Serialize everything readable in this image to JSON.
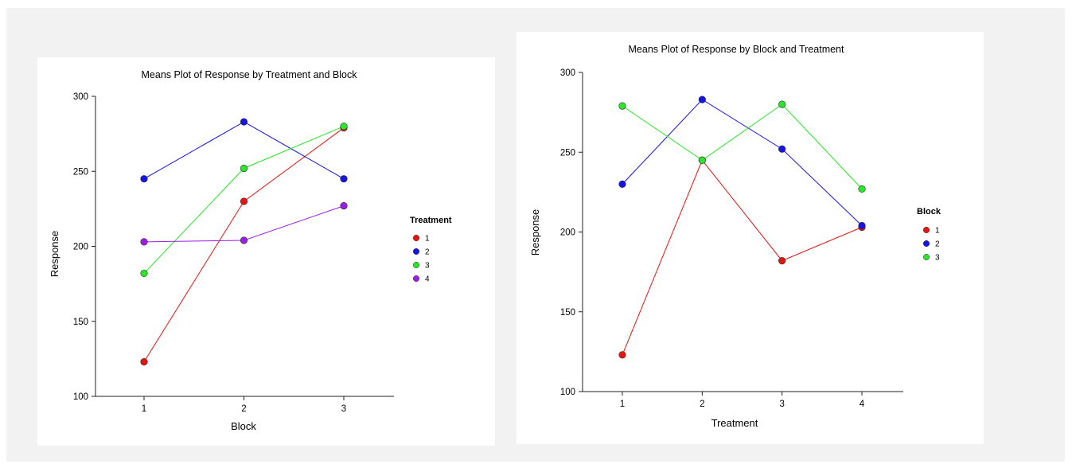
{
  "colors": {
    "red": "#e8130f",
    "blue": "#1414e6",
    "green": "#28e628",
    "purple": "#9a1ee6"
  },
  "chart_data": [
    {
      "type": "line",
      "title": "Means Plot of Response by Treatment and Block",
      "xlabel": "Block",
      "ylabel": "Response",
      "categories": [
        "1",
        "2",
        "3"
      ],
      "ylim": [
        100,
        300
      ],
      "yticks": [
        "100",
        "150",
        "200",
        "250",
        "300"
      ],
      "legend_title": "Treatment",
      "legend_placement": "right",
      "grid": false,
      "series": [
        {
          "name": "1",
          "color": "#e8130f",
          "values": [
            123,
            230,
            279
          ]
        },
        {
          "name": "2",
          "color": "#1414e6",
          "values": [
            245,
            283,
            245
          ]
        },
        {
          "name": "3",
          "color": "#28e628",
          "values": [
            182,
            252,
            280
          ]
        },
        {
          "name": "4",
          "color": "#9a1ee6",
          "values": [
            203,
            204,
            227
          ]
        }
      ]
    },
    {
      "type": "line",
      "title": "Means Plot of Response by Block and Treatment",
      "xlabel": "Treatment",
      "ylabel": "Response",
      "categories": [
        "1",
        "2",
        "3",
        "4"
      ],
      "ylim": [
        100,
        300
      ],
      "yticks": [
        "100",
        "150",
        "200",
        "250",
        "300"
      ],
      "legend_title": "Block",
      "legend_placement": "right",
      "grid": false,
      "series": [
        {
          "name": "1",
          "color": "#e8130f",
          "values": [
            123,
            245,
            182,
            203
          ]
        },
        {
          "name": "2",
          "color": "#1414e6",
          "values": [
            230,
            283,
            252,
            204
          ]
        },
        {
          "name": "3",
          "color": "#28e628",
          "values": [
            279,
            245,
            280,
            227
          ]
        }
      ]
    }
  ]
}
